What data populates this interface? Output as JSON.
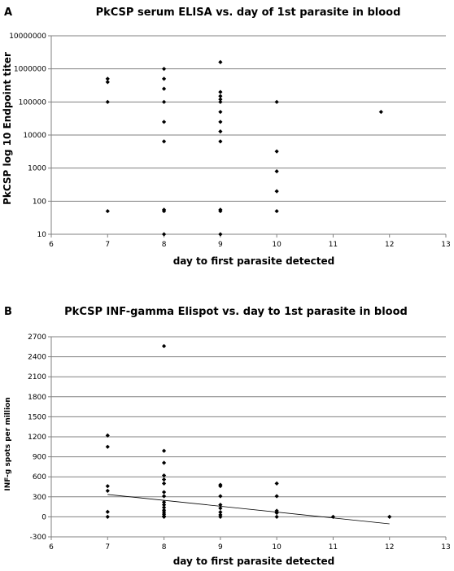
{
  "figure": {
    "label_a": "A",
    "label_b": "B"
  },
  "chart_data": [
    {
      "type": "scatter",
      "panel": "A",
      "title": "PkCSP serum ELISA vs. day of 1st parasite in blood",
      "xlabel": "day to first parasite detected",
      "ylabel": "PkCSP log 10 Endpoint titer",
      "xlim": [
        6,
        13
      ],
      "ylim": [
        10,
        10000000
      ],
      "yscale": "log",
      "grid": true,
      "legend": "none",
      "x_ticks": [
        6,
        7,
        8,
        9,
        10,
        11,
        12,
        13
      ],
      "y_ticks": [
        {
          "value": 10,
          "label": "10"
        },
        {
          "value": 100,
          "label": "100"
        },
        {
          "value": 1000,
          "label": "1000"
        },
        {
          "value": 10000,
          "label": "10000"
        },
        {
          "value": 100000,
          "label": "100000"
        },
        {
          "value": 1000000,
          "label": "1000000"
        },
        {
          "value": 10000000,
          "label": "10000000"
        }
      ],
      "marker_color": "#000000",
      "points": [
        [
          7,
          500000
        ],
        [
          7,
          400000
        ],
        [
          7,
          100000
        ],
        [
          7,
          50
        ],
        [
          8,
          1000000
        ],
        [
          8,
          500000
        ],
        [
          8,
          250000
        ],
        [
          8,
          100000
        ],
        [
          8,
          25000
        ],
        [
          8,
          6400
        ],
        [
          8,
          55
        ],
        [
          8,
          50
        ],
        [
          8,
          10
        ],
        [
          9,
          1600000
        ],
        [
          9,
          200000
        ],
        [
          9,
          150000
        ],
        [
          9,
          120000
        ],
        [
          9,
          100000
        ],
        [
          9,
          50000
        ],
        [
          9,
          25000
        ],
        [
          9,
          12800
        ],
        [
          9,
          6400
        ],
        [
          9,
          55
        ],
        [
          9,
          50
        ],
        [
          9,
          10
        ],
        [
          10,
          100000
        ],
        [
          10,
          3200
        ],
        [
          10,
          800
        ],
        [
          10,
          200
        ],
        [
          10,
          50
        ],
        [
          11.85,
          50000
        ]
      ]
    },
    {
      "type": "scatter",
      "panel": "B",
      "title": "PkCSP INF-gamma Elispot vs. day to 1st parasite in blood",
      "xlabel": "day to first parasite detected",
      "ylabel": "INF-g spots per million",
      "xlim": [
        6,
        13
      ],
      "ylim": [
        -300,
        2700
      ],
      "grid": true,
      "legend": "none",
      "x_ticks": [
        6,
        7,
        8,
        9,
        10,
        11,
        12,
        13
      ],
      "y_ticks": [
        -300,
        0,
        300,
        600,
        900,
        1200,
        1500,
        1800,
        2100,
        2400,
        2700
      ],
      "marker_color": "#000000",
      "trendline": {
        "x": [
          7,
          12
        ],
        "y": [
          335,
          -105
        ]
      },
      "points": [
        [
          7,
          1220
        ],
        [
          7,
          1050
        ],
        [
          7,
          460
        ],
        [
          7,
          390
        ],
        [
          7,
          75
        ],
        [
          7,
          0
        ],
        [
          8,
          2560
        ],
        [
          8,
          990
        ],
        [
          8,
          810
        ],
        [
          8,
          620
        ],
        [
          8,
          560
        ],
        [
          8,
          500
        ],
        [
          8,
          370
        ],
        [
          8,
          310
        ],
        [
          8,
          220
        ],
        [
          8,
          180
        ],
        [
          8,
          140
        ],
        [
          8,
          100
        ],
        [
          8,
          70
        ],
        [
          8,
          40
        ],
        [
          8,
          10
        ],
        [
          8,
          0
        ],
        [
          9,
          480
        ],
        [
          9,
          460
        ],
        [
          9,
          310
        ],
        [
          9,
          180
        ],
        [
          9,
          130
        ],
        [
          9,
          70
        ],
        [
          9,
          30
        ],
        [
          9,
          0
        ],
        [
          10,
          500
        ],
        [
          10,
          310
        ],
        [
          10,
          90
        ],
        [
          10,
          60
        ],
        [
          10,
          0
        ],
        [
          11,
          0
        ],
        [
          12,
          0
        ]
      ]
    }
  ]
}
